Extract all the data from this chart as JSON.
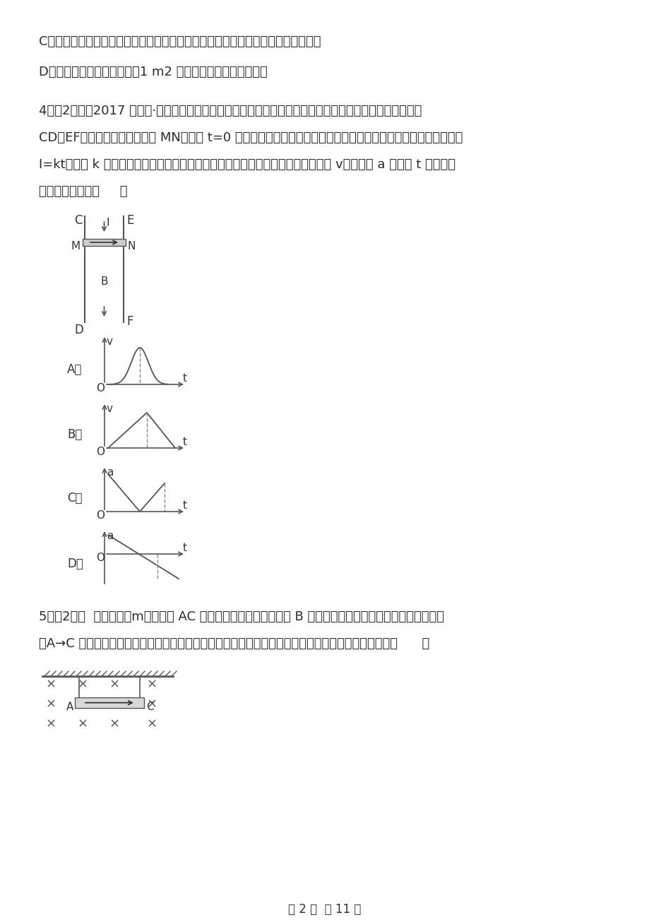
{
  "bg_color": "#ffffff",
  "text_color": "#2a2a2a",
  "line_C": "C．无论如何只要磁通量大，则磁感应强度大，磁通量为零，则磁感应强度一定为零",
  "line_D": "D．磁感应强度在数值上等于1 m2 的面积上穿过的最大磁通量",
  "q4_line1": "4．（2分）（2017 高二上·福建期末）如图所示，在竖直向下的匀强磁场中有两根竖直放置的平行粗糙导轨",
  "q4_line2": "CD、EF，导轨上放有一金属棒 MN．现从 t=0 时刻起，给金属棒通以图示方向的电流且电流强度与时间成正比，即",
  "q4_line3": "I=kt，其中 k 为常量，金属棒与导轨始终垂直且接触良好．下列关于金属棒的速度 v、加速度 a 随时间 t 变化的图",
  "q4_line4": "象可能正确的是（     ）",
  "q5_line1": "5．（2分）  一根质量为m的金属棒 AC 用细线悬挂在磁感应强度为 B 的匀强磁场中，磁场方向如图所示。当通",
  "q5_line2": "入A→C 方向的电流时，悬线对金属棒的拉力不为零。若要使悬线对棒的拉力为零，可以采用的办法是（      ）",
  "page_footer": "第 2 页  共 11 页"
}
